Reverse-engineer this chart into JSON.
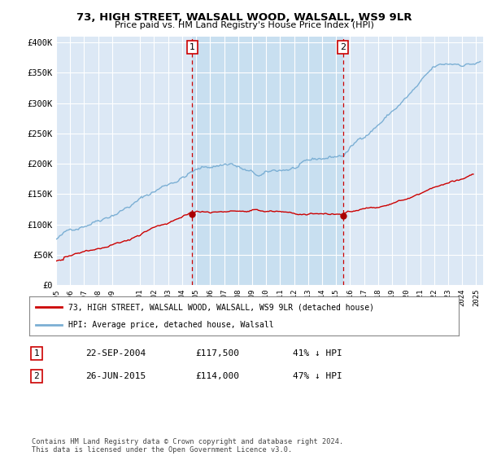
{
  "title": "73, HIGH STREET, WALSALL WOOD, WALSALL, WS9 9LR",
  "subtitle": "Price paid vs. HM Land Registry's House Price Index (HPI)",
  "ylabel_ticks": [
    "£0",
    "£50K",
    "£100K",
    "£150K",
    "£200K",
    "£250K",
    "£300K",
    "£350K",
    "£400K"
  ],
  "ytick_values": [
    0,
    50000,
    100000,
    150000,
    200000,
    250000,
    300000,
    350000,
    400000
  ],
  "ylim": [
    0,
    410000
  ],
  "xlim_start": 1995.0,
  "xlim_end": 2025.5,
  "hpi_color": "#7bafd4",
  "price_color": "#cc0000",
  "plot_bg": "#dce8f5",
  "marker1_x": 2004.72,
  "marker1_y": 117500,
  "marker2_x": 2015.49,
  "marker2_y": 114000,
  "marker1_label": "1",
  "marker2_label": "2",
  "between_fill_color": "#c8dff0",
  "legend_line1": "73, HIGH STREET, WALSALL WOOD, WALSALL, WS9 9LR (detached house)",
  "legend_line2": "HPI: Average price, detached house, Walsall",
  "table_row1": [
    "1",
    "22-SEP-2004",
    "£117,500",
    "41% ↓ HPI"
  ],
  "table_row2": [
    "2",
    "26-JUN-2015",
    "£114,000",
    "47% ↓ HPI"
  ],
  "footnote": "Contains HM Land Registry data © Crown copyright and database right 2024.\nThis data is licensed under the Open Government Licence v3.0.",
  "xtick_years": [
    1995,
    1996,
    1997,
    1998,
    1999,
    2001,
    2002,
    2003,
    2004,
    2005,
    2006,
    2007,
    2008,
    2009,
    2010,
    2011,
    2012,
    2013,
    2014,
    2015,
    2016,
    2017,
    2018,
    2019,
    2020,
    2021,
    2022,
    2023,
    2024,
    2025
  ]
}
